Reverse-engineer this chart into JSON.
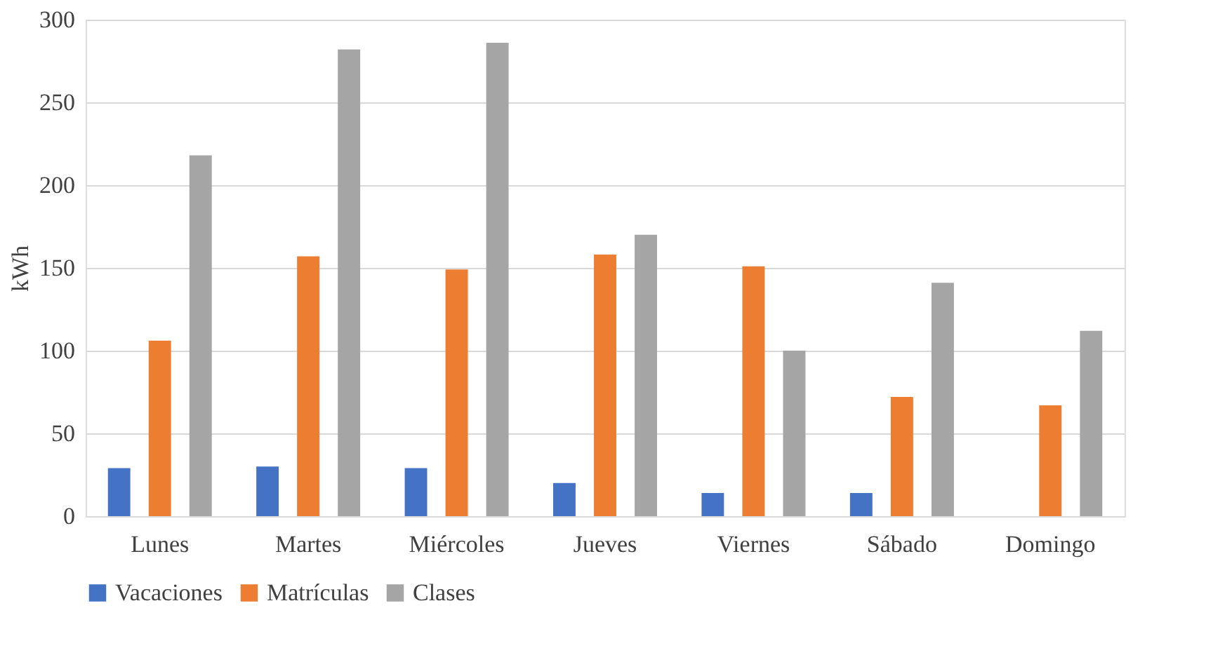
{
  "chart_data": {
    "type": "bar",
    "ylabel": "kWh",
    "categories": [
      "Lunes",
      "Martes",
      "Miércoles",
      "Jueves",
      "Viernes",
      "Sábado",
      "Domingo"
    ],
    "series": [
      {
        "name": "Vacaciones",
        "color": "#4472c4",
        "values": [
          29,
          30,
          29,
          20,
          14,
          14,
          null
        ]
      },
      {
        "name": "Matrículas",
        "color": "#ed7d31",
        "values": [
          106,
          157,
          149,
          158,
          151,
          72,
          67
        ]
      },
      {
        "name": "Clases",
        "color": "#a5a5a5",
        "values": [
          218,
          282,
          286,
          170,
          100,
          141,
          112
        ]
      }
    ],
    "ylim": [
      0,
      300
    ],
    "yticks": [
      0,
      50,
      100,
      150,
      200,
      250,
      300
    ],
    "grid": "y",
    "legend": "bottom"
  }
}
